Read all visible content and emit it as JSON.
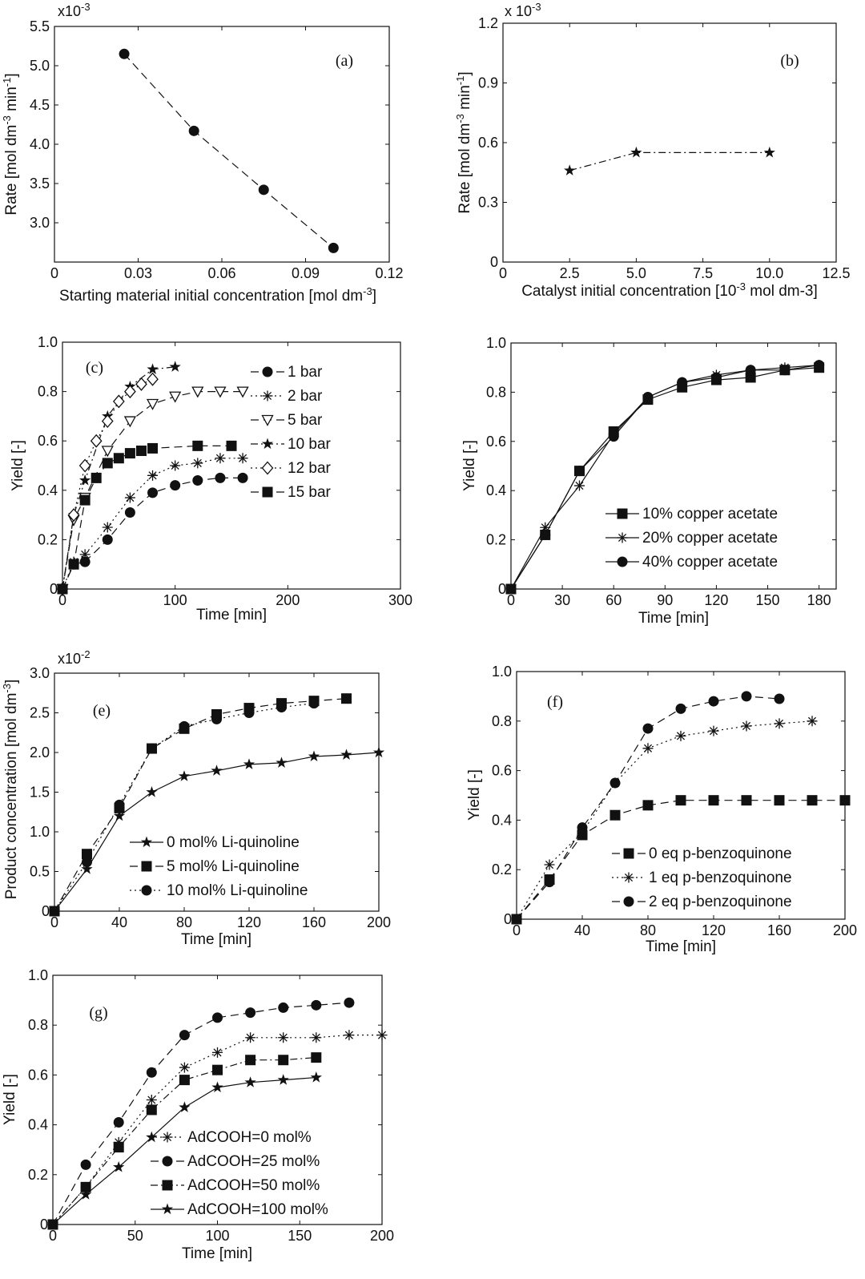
{
  "chart_data": [
    {
      "id": "a",
      "type": "line",
      "panel_label": "(a)",
      "xlabel": "Starting material initial concentration [mol dm",
      "xlabel_sup": "-3",
      "xlabel_end": "]",
      "ylabel": "Rate [mol dm",
      "ylabel_sup": "-3",
      "ylabel_mid": " min",
      "ylabel_sup2": "-1",
      "ylabel_end": "]",
      "multiplier": "x10",
      "multiplier_exp": "-3",
      "xlim": [
        0,
        0.12
      ],
      "ylim": [
        2.5,
        5.5
      ],
      "xticks": [
        0,
        0.03,
        0.06,
        0.09,
        0.12
      ],
      "xtick_labels": [
        "0",
        "0.03",
        "0.06",
        "0.09",
        "0.12"
      ],
      "yticks": [
        3.0,
        3.5,
        4.0,
        4.5,
        5.0,
        5.5
      ],
      "ytick_labels": [
        "3.0",
        "3.5",
        "4.0",
        "4.5",
        "5.0",
        "5.5"
      ],
      "series": [
        {
          "name": "rate",
          "marker": "circle",
          "dash": "dashed",
          "x": [
            0.025,
            0.05,
            0.075,
            0.1
          ],
          "y": [
            5.15,
            4.17,
            3.42,
            2.68
          ]
        }
      ]
    },
    {
      "id": "b",
      "type": "line",
      "panel_label": "(b)",
      "xlabel": "Catalyst initial concentration [10",
      "xlabel_sup": "-3",
      "xlabel_end": " mol dm-3]",
      "ylabel": "Rate [mol dm",
      "ylabel_sup": "-3",
      "ylabel_mid": " min",
      "ylabel_sup2": "-1",
      "ylabel_end": "]",
      "multiplier": "x 10",
      "multiplier_exp": "-3",
      "xlim": [
        0,
        12.5
      ],
      "ylim": [
        0,
        1.2
      ],
      "xticks": [
        0,
        2.5,
        5.0,
        7.5,
        10.0,
        12.5
      ],
      "xtick_labels": [
        "0",
        "2.5",
        "5.0",
        "7.5",
        "10.0",
        "12.5"
      ],
      "yticks": [
        0,
        0.3,
        0.6,
        0.9,
        1.2
      ],
      "ytick_labels": [
        "0",
        "0.3",
        "0.6",
        "0.9",
        "1.2"
      ],
      "series": [
        {
          "name": "rate",
          "marker": "star",
          "dash": "dashdot",
          "x": [
            2.5,
            5.0,
            10.0
          ],
          "y": [
            0.46,
            0.55,
            0.55
          ]
        }
      ]
    },
    {
      "id": "c",
      "type": "line",
      "panel_label": "(c)",
      "xlabel": "Time [min]",
      "ylabel": "Yield [-]",
      "xlim": [
        0,
        300
      ],
      "ylim": [
        0,
        1.0
      ],
      "xticks": [
        0,
        100,
        200,
        300
      ],
      "xtick_labels": [
        "0",
        "100",
        "200",
        "300"
      ],
      "yticks": [
        0,
        0.2,
        0.4,
        0.6,
        0.8,
        1.0
      ],
      "ytick_labels": [
        "0",
        "0.2",
        "0.4",
        "0.6",
        "0.8",
        "1.0"
      ],
      "legend_position": "top-right",
      "series": [
        {
          "name": "1 bar",
          "marker": "circle",
          "dash": "dashed",
          "x": [
            0,
            10,
            20,
            40,
            60,
            80,
            100,
            120,
            140,
            160
          ],
          "y": [
            0,
            0.1,
            0.11,
            0.2,
            0.31,
            0.39,
            0.42,
            0.44,
            0.45,
            0.45
          ]
        },
        {
          "name": "2 bar",
          "marker": "asterisk",
          "dash": "dotted",
          "x": [
            0,
            10,
            20,
            40,
            60,
            80,
            100,
            120,
            140,
            160
          ],
          "y": [
            0,
            0.11,
            0.14,
            0.25,
            0.37,
            0.46,
            0.5,
            0.51,
            0.53,
            0.53
          ]
        },
        {
          "name": "5 bar",
          "marker": "triangle-down",
          "dash": "dashed",
          "x": [
            0,
            10,
            20,
            40,
            60,
            80,
            100,
            120,
            140,
            160
          ],
          "y": [
            0,
            0.28,
            0.37,
            0.56,
            0.68,
            0.75,
            0.78,
            0.8,
            0.8,
            0.8
          ]
        },
        {
          "name": "10 bar",
          "marker": "star",
          "dash": "dashdot",
          "x": [
            0,
            10,
            20,
            40,
            60,
            80,
            100
          ],
          "y": [
            0,
            0.3,
            0.44,
            0.7,
            0.82,
            0.89,
            0.9
          ]
        },
        {
          "name": "12 bar",
          "marker": "diamond",
          "dash": "dotted",
          "x": [
            0,
            10,
            20,
            30,
            40,
            50,
            60,
            70,
            80
          ],
          "y": [
            0,
            0.3,
            0.5,
            0.6,
            0.68,
            0.76,
            0.8,
            0.83,
            0.85
          ]
        },
        {
          "name": "15 bar",
          "marker": "square",
          "dash": "dashed",
          "x": [
            0,
            10,
            20,
            30,
            40,
            50,
            60,
            70,
            80,
            120,
            150
          ],
          "y": [
            0,
            0.1,
            0.36,
            0.45,
            0.51,
            0.53,
            0.55,
            0.56,
            0.57,
            0.58,
            0.58
          ]
        }
      ]
    },
    {
      "id": "d",
      "type": "line",
      "panel_label": "",
      "xlabel": "Time [min]",
      "ylabel": "Yield [-]",
      "xlim": [
        0,
        190
      ],
      "ylim": [
        0,
        1.0
      ],
      "xticks": [
        0,
        30,
        60,
        90,
        120,
        150,
        180
      ],
      "xtick_labels": [
        "0",
        "30",
        "60",
        "90",
        "120",
        "150",
        "180"
      ],
      "yticks": [
        0,
        0.2,
        0.4,
        0.6,
        0.8,
        1.0
      ],
      "ytick_labels": [
        "0",
        "0.2",
        "0.4",
        "0.6",
        "0.8",
        "1.0"
      ],
      "legend_position": "bottom-right",
      "series": [
        {
          "name": "10% copper acetate",
          "marker": "square",
          "dash": "solid",
          "x": [
            0,
            20,
            40,
            60,
            80,
            100,
            120,
            140,
            160,
            180
          ],
          "y": [
            0,
            0.22,
            0.48,
            0.64,
            0.77,
            0.82,
            0.85,
            0.86,
            0.89,
            0.9
          ]
        },
        {
          "name": "20% copper acetate",
          "marker": "asterisk",
          "dash": "solid",
          "x": [
            0,
            20,
            40,
            60,
            80,
            100,
            120,
            140,
            160,
            180
          ],
          "y": [
            0,
            0.25,
            0.42,
            0.63,
            0.78,
            0.84,
            0.87,
            0.89,
            0.9,
            0.91
          ]
        },
        {
          "name": "40% copper acetate",
          "marker": "circle",
          "dash": "solid",
          "x": [
            0,
            20,
            40,
            60,
            80,
            100,
            120,
            140,
            160,
            180
          ],
          "y": [
            0,
            0.22,
            0.48,
            0.62,
            0.78,
            0.84,
            0.86,
            0.89,
            0.89,
            0.91
          ]
        }
      ]
    },
    {
      "id": "e",
      "type": "line",
      "panel_label": "(e)",
      "xlabel": "Time [min]",
      "ylabel": "Product concentration [mol dm",
      "ylabel_sup": "-3",
      "ylabel_end": "]",
      "multiplier": "x10",
      "multiplier_exp": "-2",
      "xlim": [
        0,
        200
      ],
      "ylim": [
        0,
        3.0
      ],
      "xticks": [
        0,
        40,
        80,
        120,
        160,
        200
      ],
      "xtick_labels": [
        "0",
        "40",
        "80",
        "120",
        "160",
        "200"
      ],
      "yticks": [
        0,
        0.5,
        1.0,
        1.5,
        2.0,
        2.5,
        3.0
      ],
      "ytick_labels": [
        "0",
        "0.5",
        "1.0",
        "1.5",
        "2.0",
        "2.5",
        "3.0"
      ],
      "legend_position": "bottom-right",
      "series": [
        {
          "name": "0 mol% Li-quinoline",
          "marker": "star",
          "dash": "solid",
          "x": [
            0,
            20,
            40,
            60,
            80,
            100,
            120,
            140,
            160,
            180,
            200
          ],
          "y": [
            0,
            0.53,
            1.2,
            1.5,
            1.7,
            1.77,
            1.85,
            1.87,
            1.95,
            1.97,
            2.0
          ]
        },
        {
          "name": "5 mol% Li-quinoline",
          "marker": "square",
          "dash": "dashed",
          "x": [
            0,
            20,
            40,
            60,
            80,
            100,
            120,
            140,
            160,
            180
          ],
          "y": [
            0,
            0.72,
            1.3,
            2.05,
            2.3,
            2.48,
            2.56,
            2.62,
            2.65,
            2.68
          ]
        },
        {
          "name": "10 mol% Li-quinoline",
          "marker": "circle",
          "dash": "dotted",
          "x": [
            0,
            20,
            40,
            60,
            80,
            100,
            120,
            140,
            160
          ],
          "y": [
            0,
            0.62,
            1.34,
            2.05,
            2.33,
            2.42,
            2.5,
            2.57,
            2.62
          ]
        }
      ]
    },
    {
      "id": "f",
      "type": "line",
      "panel_label": "(f)",
      "xlabel": "Time [min]",
      "ylabel": "Yield [-]",
      "xlim": [
        0,
        200
      ],
      "ylim": [
        0,
        1.0
      ],
      "xticks": [
        0,
        40,
        80,
        120,
        160,
        200
      ],
      "xtick_labels": [
        "0",
        "40",
        "80",
        "120",
        "160",
        "200"
      ],
      "yticks": [
        0,
        0.2,
        0.4,
        0.6,
        0.8,
        1.0
      ],
      "ytick_labels": [
        "0",
        "0.2",
        "0.4",
        "0.6",
        "0.8",
        "1.0"
      ],
      "legend_position": "bottom-right",
      "series": [
        {
          "name": "0 eq p-benzoquinone",
          "marker": "square",
          "dash": "dashed",
          "x": [
            0,
            20,
            40,
            60,
            80,
            100,
            120,
            140,
            160,
            180,
            200
          ],
          "y": [
            0,
            0.16,
            0.34,
            0.42,
            0.46,
            0.48,
            0.48,
            0.48,
            0.48,
            0.48,
            0.48
          ]
        },
        {
          "name": "1 eq p-benzoquinone",
          "marker": "asterisk",
          "dash": "dotted",
          "x": [
            0,
            20,
            40,
            60,
            80,
            100,
            120,
            140,
            160,
            180
          ],
          "y": [
            0,
            0.22,
            0.35,
            0.55,
            0.69,
            0.74,
            0.76,
            0.78,
            0.79,
            0.8
          ]
        },
        {
          "name": "2 eq p-benzoquinone",
          "marker": "circle",
          "dash": "dashed",
          "x": [
            0,
            20,
            40,
            60,
            80,
            100,
            120,
            140,
            160
          ],
          "y": [
            0,
            0.15,
            0.37,
            0.55,
            0.77,
            0.85,
            0.88,
            0.9,
            0.89
          ]
        }
      ]
    },
    {
      "id": "g",
      "type": "line",
      "panel_label": "(g)",
      "xlabel": "Time [min]",
      "ylabel": "Yield [-]",
      "xlim": [
        0,
        200
      ],
      "ylim": [
        0,
        1.0
      ],
      "xticks": [
        0,
        50,
        100,
        150,
        200
      ],
      "xtick_labels": [
        "0",
        "50",
        "100",
        "150",
        "200"
      ],
      "yticks": [
        0,
        0.2,
        0.4,
        0.6,
        0.8,
        1.0
      ],
      "ytick_labels": [
        "0",
        "0.2",
        "0.4",
        "0.6",
        "0.8",
        "1.0"
      ],
      "legend_position": "bottom-right",
      "series": [
        {
          "name": "AdCOOH=0 mol%",
          "marker": "asterisk",
          "dash": "dotted",
          "x": [
            0,
            20,
            40,
            60,
            80,
            100,
            120,
            140,
            160,
            180,
            200
          ],
          "y": [
            0,
            0.15,
            0.33,
            0.5,
            0.63,
            0.69,
            0.75,
            0.75,
            0.75,
            0.76,
            0.76
          ]
        },
        {
          "name": "AdCOOH=25 mol%",
          "marker": "circle",
          "dash": "dashed",
          "x": [
            0,
            20,
            40,
            60,
            80,
            100,
            120,
            140,
            160,
            180
          ],
          "y": [
            0,
            0.24,
            0.41,
            0.61,
            0.76,
            0.83,
            0.85,
            0.87,
            0.88,
            0.89
          ]
        },
        {
          "name": "AdCOOH=50 mol%",
          "marker": "square",
          "dash": "dashdot",
          "x": [
            0,
            20,
            40,
            60,
            80,
            100,
            120,
            140,
            160
          ],
          "y": [
            0,
            0.15,
            0.31,
            0.46,
            0.58,
            0.62,
            0.66,
            0.66,
            0.67
          ]
        },
        {
          "name": "AdCOOH=100 mol%",
          "marker": "star",
          "dash": "solid",
          "x": [
            0,
            20,
            40,
            60,
            80,
            100,
            120,
            140,
            160
          ],
          "y": [
            0,
            0.12,
            0.23,
            0.35,
            0.47,
            0.55,
            0.57,
            0.58,
            0.59
          ]
        }
      ]
    }
  ]
}
